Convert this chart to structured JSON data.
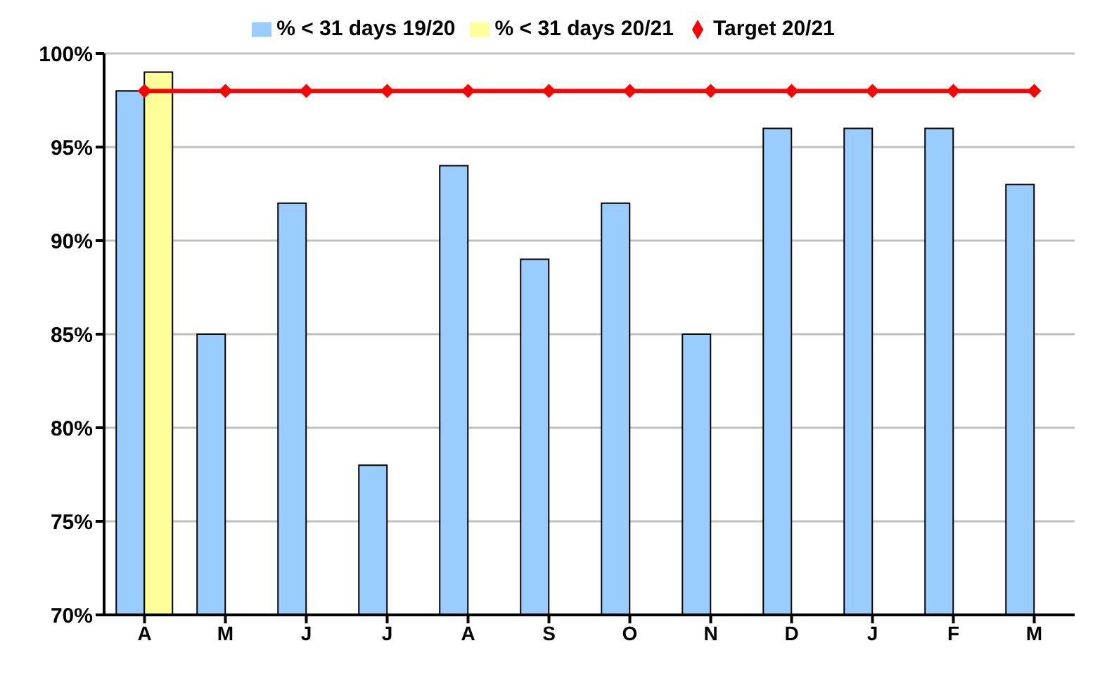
{
  "chart_data": {
    "type": "bar",
    "categories": [
      "A",
      "M",
      "J",
      "J",
      "A",
      "S",
      "O",
      "N",
      "D",
      "J",
      "F",
      "M"
    ],
    "series": [
      {
        "name": "% < 31 days 19/20",
        "color": "#99ccff",
        "values": [
          98,
          85,
          92,
          78,
          94,
          89,
          92,
          85,
          96,
          96,
          96,
          93
        ]
      },
      {
        "name": "% < 31 days 20/21",
        "color": "#ffff99",
        "values": [
          99,
          null,
          null,
          null,
          null,
          null,
          null,
          null,
          null,
          null,
          null,
          null
        ]
      },
      {
        "name": "Target 20/21",
        "type": "line",
        "color": "#ff0000",
        "values": [
          98,
          98,
          98,
          98,
          98,
          98,
          98,
          98,
          98,
          98,
          98,
          98
        ]
      }
    ],
    "ylim": [
      70,
      100
    ],
    "yticks": [
      {
        "value": 70,
        "label": "70%"
      },
      {
        "value": 75,
        "label": "75%"
      },
      {
        "value": 80,
        "label": "80%"
      },
      {
        "value": 85,
        "label": "85%"
      },
      {
        "value": 90,
        "label": "90%"
      },
      {
        "value": 95,
        "label": "95%"
      },
      {
        "value": 100,
        "label": "100%"
      }
    ],
    "grid": "y",
    "legend": "top",
    "marker": "diamond"
  }
}
